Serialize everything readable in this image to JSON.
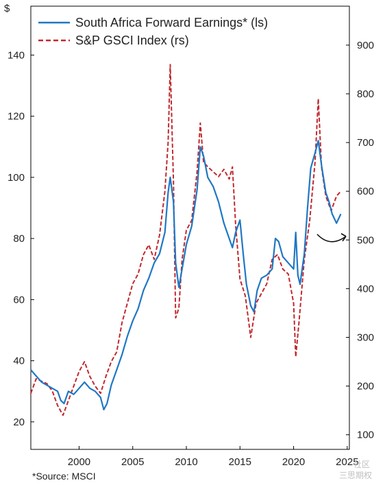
{
  "chart_data": {
    "type": "line",
    "left_axis_unit": "$",
    "x_ticks": [
      2000,
      2005,
      2010,
      2015,
      2020,
      2025
    ],
    "left_ticks": [
      20,
      40,
      60,
      80,
      100,
      120,
      140
    ],
    "right_ticks": [
      100,
      200,
      300,
      400,
      500,
      600,
      700,
      800,
      900
    ],
    "xlim": [
      1995.5,
      2025.2
    ],
    "ylim_left": [
      11,
      156
    ],
    "ylim_right": [
      70,
      980
    ],
    "legend_position": "top-left",
    "grid": false,
    "source": "*Source: MSCI",
    "series": [
      {
        "name": "South Africa Forward Earnings* (ls)",
        "axis": "left",
        "color": "#1f77c4",
        "style": "solid",
        "points": [
          [
            1995.5,
            37
          ],
          [
            1996,
            35
          ],
          [
            1996.5,
            33
          ],
          [
            1997,
            32
          ],
          [
            1997.5,
            31
          ],
          [
            1998,
            30
          ],
          [
            1998.3,
            27
          ],
          [
            1998.6,
            26
          ],
          [
            1999,
            30
          ],
          [
            1999.5,
            29
          ],
          [
            2000,
            31
          ],
          [
            2000.5,
            33
          ],
          [
            2001,
            31
          ],
          [
            2001.5,
            30
          ],
          [
            2002,
            28
          ],
          [
            2002.3,
            24
          ],
          [
            2002.6,
            26
          ],
          [
            2003,
            32
          ],
          [
            2003.5,
            37
          ],
          [
            2004,
            42
          ],
          [
            2004.5,
            48
          ],
          [
            2005,
            53
          ],
          [
            2005.5,
            57
          ],
          [
            2006,
            63
          ],
          [
            2006.5,
            67
          ],
          [
            2007,
            72
          ],
          [
            2007.5,
            75
          ],
          [
            2008,
            82
          ],
          [
            2008.3,
            95
          ],
          [
            2008.5,
            100
          ],
          [
            2008.8,
            92
          ],
          [
            2009,
            72
          ],
          [
            2009.3,
            64
          ],
          [
            2009.6,
            70
          ],
          [
            2010,
            78
          ],
          [
            2010.5,
            84
          ],
          [
            2011,
            96
          ],
          [
            2011.3,
            110
          ],
          [
            2011.6,
            107
          ],
          [
            2012,
            100
          ],
          [
            2012.5,
            97
          ],
          [
            2013,
            92
          ],
          [
            2013.5,
            85
          ],
          [
            2014,
            80
          ],
          [
            2014.3,
            77
          ],
          [
            2014.6,
            82
          ],
          [
            2015,
            86
          ],
          [
            2015.3,
            75
          ],
          [
            2015.6,
            65
          ],
          [
            2016,
            58
          ],
          [
            2016.3,
            56
          ],
          [
            2016.6,
            63
          ],
          [
            2017,
            67
          ],
          [
            2017.5,
            68
          ],
          [
            2018,
            70
          ],
          [
            2018.3,
            80
          ],
          [
            2018.6,
            79
          ],
          [
            2019,
            74
          ],
          [
            2019.5,
            72
          ],
          [
            2020,
            70
          ],
          [
            2020.2,
            82
          ],
          [
            2020.4,
            68
          ],
          [
            2020.6,
            65
          ],
          [
            2021,
            75
          ],
          [
            2021.3,
            90
          ],
          [
            2021.6,
            103
          ],
          [
            2022,
            108
          ],
          [
            2022.3,
            112
          ],
          [
            2022.6,
            104
          ],
          [
            2023,
            95
          ],
          [
            2023.3,
            92
          ],
          [
            2023.6,
            88
          ],
          [
            2024,
            85
          ],
          [
            2024.4,
            88
          ]
        ]
      },
      {
        "name": "S&P GSCI Index (rs)",
        "axis": "right",
        "color": "#c0282e",
        "style": "dashed",
        "points": [
          [
            1995.5,
            185
          ],
          [
            1996,
            215
          ],
          [
            1996.5,
            210
          ],
          [
            1997,
            205
          ],
          [
            1997.5,
            190
          ],
          [
            1998,
            160
          ],
          [
            1998.5,
            140
          ],
          [
            1999,
            170
          ],
          [
            1999.5,
            200
          ],
          [
            2000,
            230
          ],
          [
            2000.5,
            250
          ],
          [
            2001,
            220
          ],
          [
            2001.5,
            200
          ],
          [
            2002,
            185
          ],
          [
            2002.5,
            220
          ],
          [
            2003,
            250
          ],
          [
            2003.5,
            270
          ],
          [
            2004,
            330
          ],
          [
            2004.5,
            370
          ],
          [
            2005,
            410
          ],
          [
            2005.5,
            430
          ],
          [
            2006,
            470
          ],
          [
            2006.5,
            490
          ],
          [
            2007,
            460
          ],
          [
            2007.5,
            510
          ],
          [
            2008,
            600
          ],
          [
            2008.3,
            700
          ],
          [
            2008.5,
            860
          ],
          [
            2008.8,
            620
          ],
          [
            2009,
            340
          ],
          [
            2009.3,
            360
          ],
          [
            2009.6,
            460
          ],
          [
            2010,
            520
          ],
          [
            2010.5,
            540
          ],
          [
            2011,
            640
          ],
          [
            2011.3,
            740
          ],
          [
            2011.6,
            660
          ],
          [
            2012,
            650
          ],
          [
            2012.5,
            640
          ],
          [
            2013,
            630
          ],
          [
            2013.5,
            645
          ],
          [
            2014,
            625
          ],
          [
            2014.3,
            650
          ],
          [
            2014.6,
            530
          ],
          [
            2015,
            420
          ],
          [
            2015.5,
            385
          ],
          [
            2016,
            300
          ],
          [
            2016.5,
            370
          ],
          [
            2017,
            390
          ],
          [
            2017.5,
            410
          ],
          [
            2018,
            460
          ],
          [
            2018.5,
            470
          ],
          [
            2019,
            440
          ],
          [
            2019.5,
            430
          ],
          [
            2020,
            370
          ],
          [
            2020.2,
            260
          ],
          [
            2020.5,
            330
          ],
          [
            2021,
            460
          ],
          [
            2021.5,
            540
          ],
          [
            2022,
            660
          ],
          [
            2022.3,
            790
          ],
          [
            2022.6,
            650
          ],
          [
            2023,
            590
          ],
          [
            2023.5,
            560
          ],
          [
            2024,
            590
          ],
          [
            2024.4,
            600
          ]
        ]
      }
    ]
  },
  "legend": {
    "earnings_label": "South Africa Forward Earnings* (ls)",
    "gsci_label": "S&P GSCI Index (rs)"
  },
  "watermark": {
    "line1": "社区",
    "line2": "三思期权"
  }
}
